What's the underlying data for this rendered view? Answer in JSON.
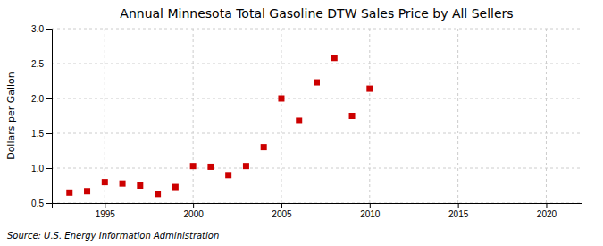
{
  "chart_data": {
    "type": "scatter",
    "title": "Annual Minnesota Total Gasoline DTW Sales Price by All Sellers",
    "ylabel": "Dollars per Gallon",
    "annotations": [
      "Source: U.S. Energy Information Administration"
    ],
    "x": [
      1993,
      1994,
      1995,
      1996,
      1997,
      1998,
      1999,
      2000,
      2001,
      2002,
      2003,
      2004,
      2005,
      2006,
      2007,
      2008,
      2009,
      2010
    ],
    "values": [
      0.65,
      0.67,
      0.8,
      0.78,
      0.75,
      0.63,
      0.73,
      1.03,
      1.02,
      0.9,
      1.03,
      1.3,
      2.0,
      1.68,
      2.23,
      2.58,
      1.75,
      2.14
    ],
    "color": "#cc0000",
    "marker": "square",
    "xlim": [
      1992,
      2022
    ],
    "xticks": [
      1995,
      2000,
      2005,
      2010,
      2015,
      2020
    ],
    "ylim": [
      0.5,
      3.0
    ],
    "yticks": [
      0.5,
      {
        "value": 1.0,
        "label": "1.0"
      },
      1.5,
      {
        "value": 2.0,
        "label": "2.0"
      },
      2.5,
      {
        "value": 3.0,
        "label": "3.0"
      }
    ],
    "grid": true
  }
}
